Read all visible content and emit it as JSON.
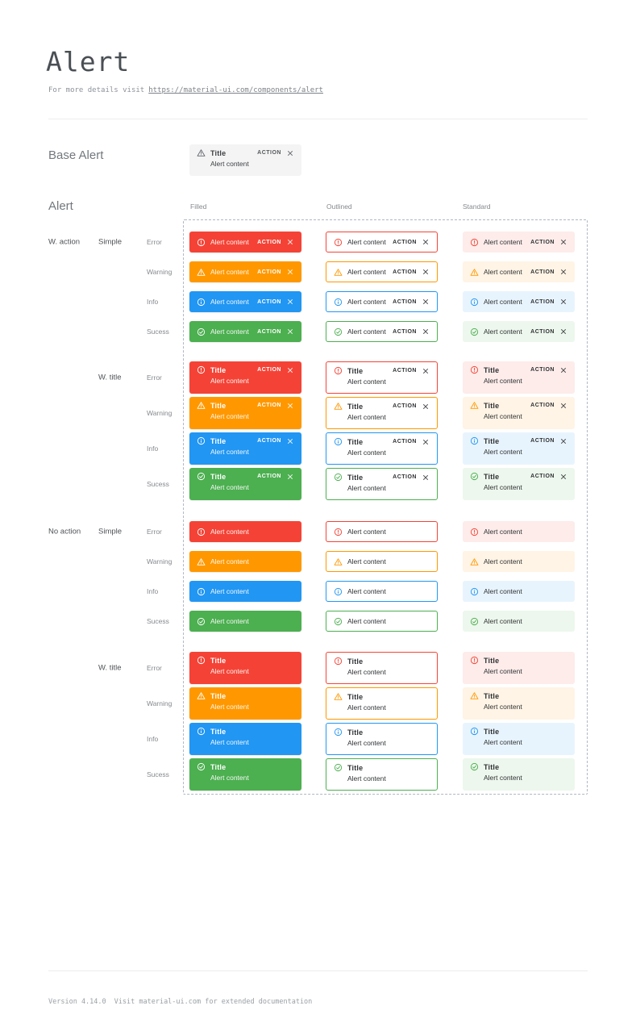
{
  "page": {
    "title": "Alert",
    "subtitle_prefix": "For more details visit",
    "subtitle_link": "https://material-ui.com/components/alert",
    "footer_version": "Version 4.14.0",
    "footer_note": "Visit material-ui.com for extended documentation"
  },
  "base_alert_section": {
    "heading": "Base Alert",
    "alert": {
      "icon": "warning-triangle-icon",
      "title": "Title",
      "content": "Alert content",
      "action_label": "ACTION",
      "close_icon": "close-icon"
    }
  },
  "alert_matrix": {
    "heading": "Alert",
    "variant_headers": [
      "Filled",
      "Outlined",
      "Standard"
    ],
    "variants": [
      "filled",
      "outlined",
      "standard"
    ],
    "severities": [
      {
        "type": "error",
        "label": "Error",
        "icon": "error-circle-icon"
      },
      {
        "type": "warning",
        "label": "Warning",
        "icon": "warning-triangle-icon"
      },
      {
        "type": "info",
        "label": "Info",
        "icon": "info-circle-icon"
      },
      {
        "type": "success",
        "label": "Sucess",
        "icon": "check-circle-icon"
      }
    ],
    "groups": [
      {
        "action_group_label": "W. action",
        "style_label": "Simple",
        "with_title": false,
        "with_action": true
      },
      {
        "action_group_label": "",
        "style_label": "W. title",
        "with_title": true,
        "with_action": true
      },
      {
        "action_group_label": "No action",
        "style_label": "Simple",
        "with_title": false,
        "with_action": false
      },
      {
        "action_group_label": "",
        "style_label": "W. title",
        "with_title": true,
        "with_action": false
      }
    ],
    "strings": {
      "title": "Title",
      "content": "Alert content",
      "action_label": "ACTION"
    }
  },
  "colors": {
    "error": {
      "main": "#f44336",
      "standard_bg": "#fdecea"
    },
    "warning": {
      "main": "#ff9800",
      "standard_bg": "#fff4e5"
    },
    "info": {
      "main": "#2196f3",
      "standard_bg": "#e8f4fd"
    },
    "success": {
      "main": "#4caf50",
      "standard_bg": "#edf7ed"
    },
    "filled_text": "#ffffff",
    "dark_text": "#303235",
    "base_alert_bg": "#f4f4f4",
    "dashed_border": "#aeb8c2"
  }
}
